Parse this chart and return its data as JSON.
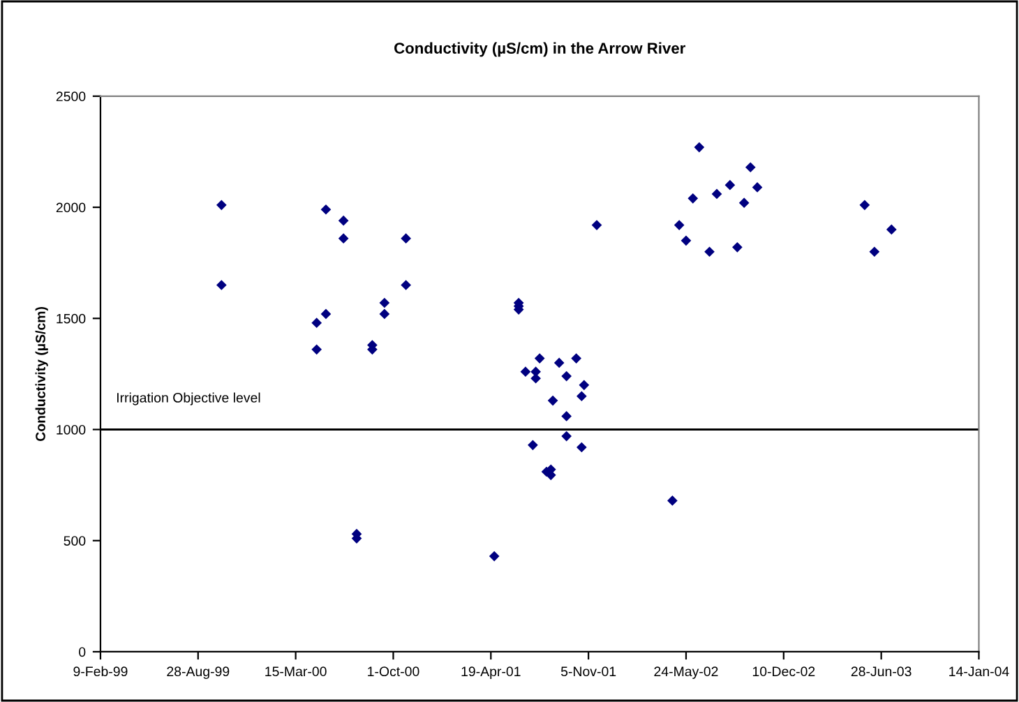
{
  "chart_data": {
    "type": "scatter",
    "title": "Conductivity (µS/cm) in the Arrow River",
    "ylabel": "Conductivity (µS/cm)",
    "series": [
      {
        "color": "#000080",
        "x": [
          "1999-10-15",
          "1999-10-15",
          "2000-04-27",
          "2000-04-27",
          "2000-05-16",
          "2000-05-16",
          "2000-06-21",
          "2000-06-21",
          "2000-07-18",
          "2000-07-18",
          "2000-08-19",
          "2000-08-19",
          "2000-09-13",
          "2000-09-13",
          "2000-10-27",
          "2000-10-27",
          "2001-06-15",
          "2001-06-15",
          "2001-06-15",
          "2001-04-26",
          "2001-06-29",
          "2001-07-20",
          "2001-07-20",
          "2001-07-28",
          "2001-07-14",
          "2001-08-11",
          "2001-08-20",
          "2001-08-20",
          "2001-08-24",
          "2001-09-06",
          "2001-09-21",
          "2001-09-21",
          "2001-09-21",
          "2001-10-11",
          "2001-10-22",
          "2001-10-22",
          "2001-10-27",
          "2001-11-22",
          "2002-04-26",
          "2002-05-10",
          "2002-05-24",
          "2002-06-07",
          "2002-06-20",
          "2002-07-11",
          "2002-07-26",
          "2002-08-22",
          "2002-09-06",
          "2002-09-20",
          "2002-10-03",
          "2002-10-17",
          "2003-05-25",
          "2003-06-14",
          "2003-07-19"
        ],
        "values": [
          2010,
          1650,
          1480,
          1360,
          1990,
          1520,
          1940,
          1860,
          530,
          510,
          1380,
          1360,
          1570,
          1520,
          1860,
          1650,
          1570,
          1555,
          1540,
          430,
          1260,
          1260,
          1230,
          1320,
          930,
          810,
          820,
          795,
          1130,
          1300,
          1240,
          1060,
          970,
          1320,
          1150,
          920,
          1200,
          1920,
          680,
          1920,
          1850,
          2040,
          2270,
          1800,
          2060,
          2100,
          1820,
          2020,
          2180,
          2090,
          2010,
          1800,
          1900
        ]
      }
    ],
    "marker": "diamond",
    "grid": false,
    "xlim": [
      "1999-02-09",
      "2004-01-14"
    ],
    "xticks": [
      {
        "value": "1999-02-09",
        "label": "9-Feb-99"
      },
      {
        "value": "1999-08-28",
        "label": "28-Aug-99"
      },
      {
        "value": "2000-03-15",
        "label": "15-Mar-00"
      },
      {
        "value": "2000-10-01",
        "label": "1-Oct-00"
      },
      {
        "value": "2001-04-19",
        "label": "19-Apr-01"
      },
      {
        "value": "2001-11-05",
        "label": "5-Nov-01"
      },
      {
        "value": "2002-05-24",
        "label": "24-May-02"
      },
      {
        "value": "2002-12-10",
        "label": "10-Dec-02"
      },
      {
        "value": "2003-06-28",
        "label": "28-Jun-03"
      },
      {
        "value": "2004-01-14",
        "label": "14-Jan-04"
      }
    ],
    "ylim": [
      0,
      2500
    ],
    "yticks": [
      0,
      500,
      1000,
      1500,
      2000,
      2500
    ],
    "ref_lines": [
      {
        "axis": "y",
        "value": 1000,
        "label": "Irrigation Objective level",
        "color": "#000000"
      }
    ]
  }
}
